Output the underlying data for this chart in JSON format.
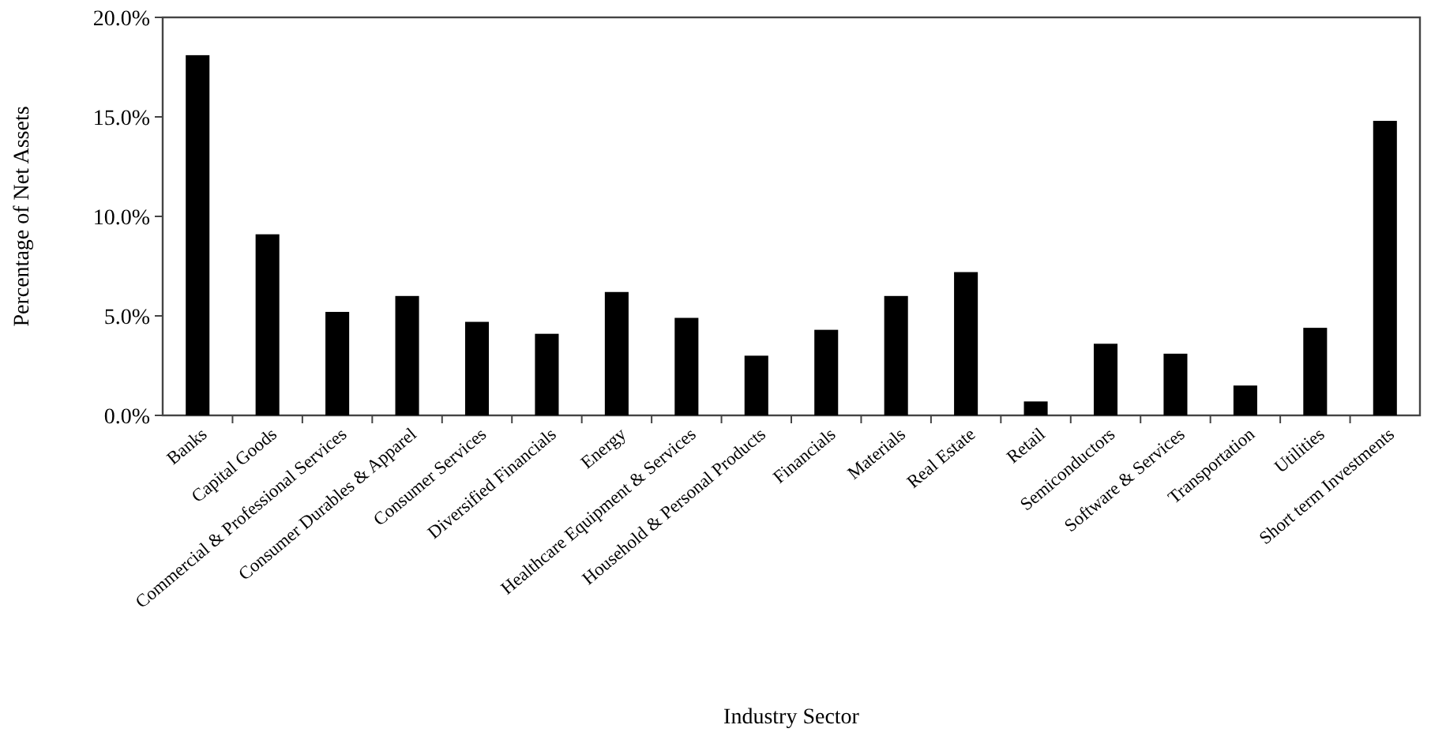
{
  "chart_data": {
    "type": "bar",
    "xlabel": "Industry Sector",
    "ylabel": "Percentage of Net Assets",
    "categories": [
      "Banks",
      "Capital Goods",
      "Commercial & Professional Services",
      "Consumer Durables & Apparel",
      "Consumer Services",
      "Diversified Financials",
      "Energy",
      "Healthcare Equipment & Services",
      "Household & Personal Products",
      "Financials",
      "Materials",
      "Real Estate",
      "Retail",
      "Semiconductors",
      "Software & Services",
      "Transportation",
      "Utilities",
      "Short term Investments"
    ],
    "values": [
      18.1,
      9.1,
      5.2,
      6.0,
      4.7,
      4.1,
      6.2,
      4.9,
      3.0,
      4.3,
      6.0,
      7.2,
      0.7,
      3.6,
      3.1,
      1.5,
      4.4,
      14.8
    ],
    "color": "#000000",
    "ylim": [
      0,
      20
    ],
    "yticks": [
      {
        "value": 0,
        "label": "0.0%"
      },
      {
        "value": 5,
        "label": "5.0%"
      },
      {
        "value": 10,
        "label": "10.0%"
      },
      {
        "value": 15,
        "label": "15.0%"
      },
      {
        "value": 20,
        "label": "20.0%"
      }
    ],
    "grid": false
  }
}
